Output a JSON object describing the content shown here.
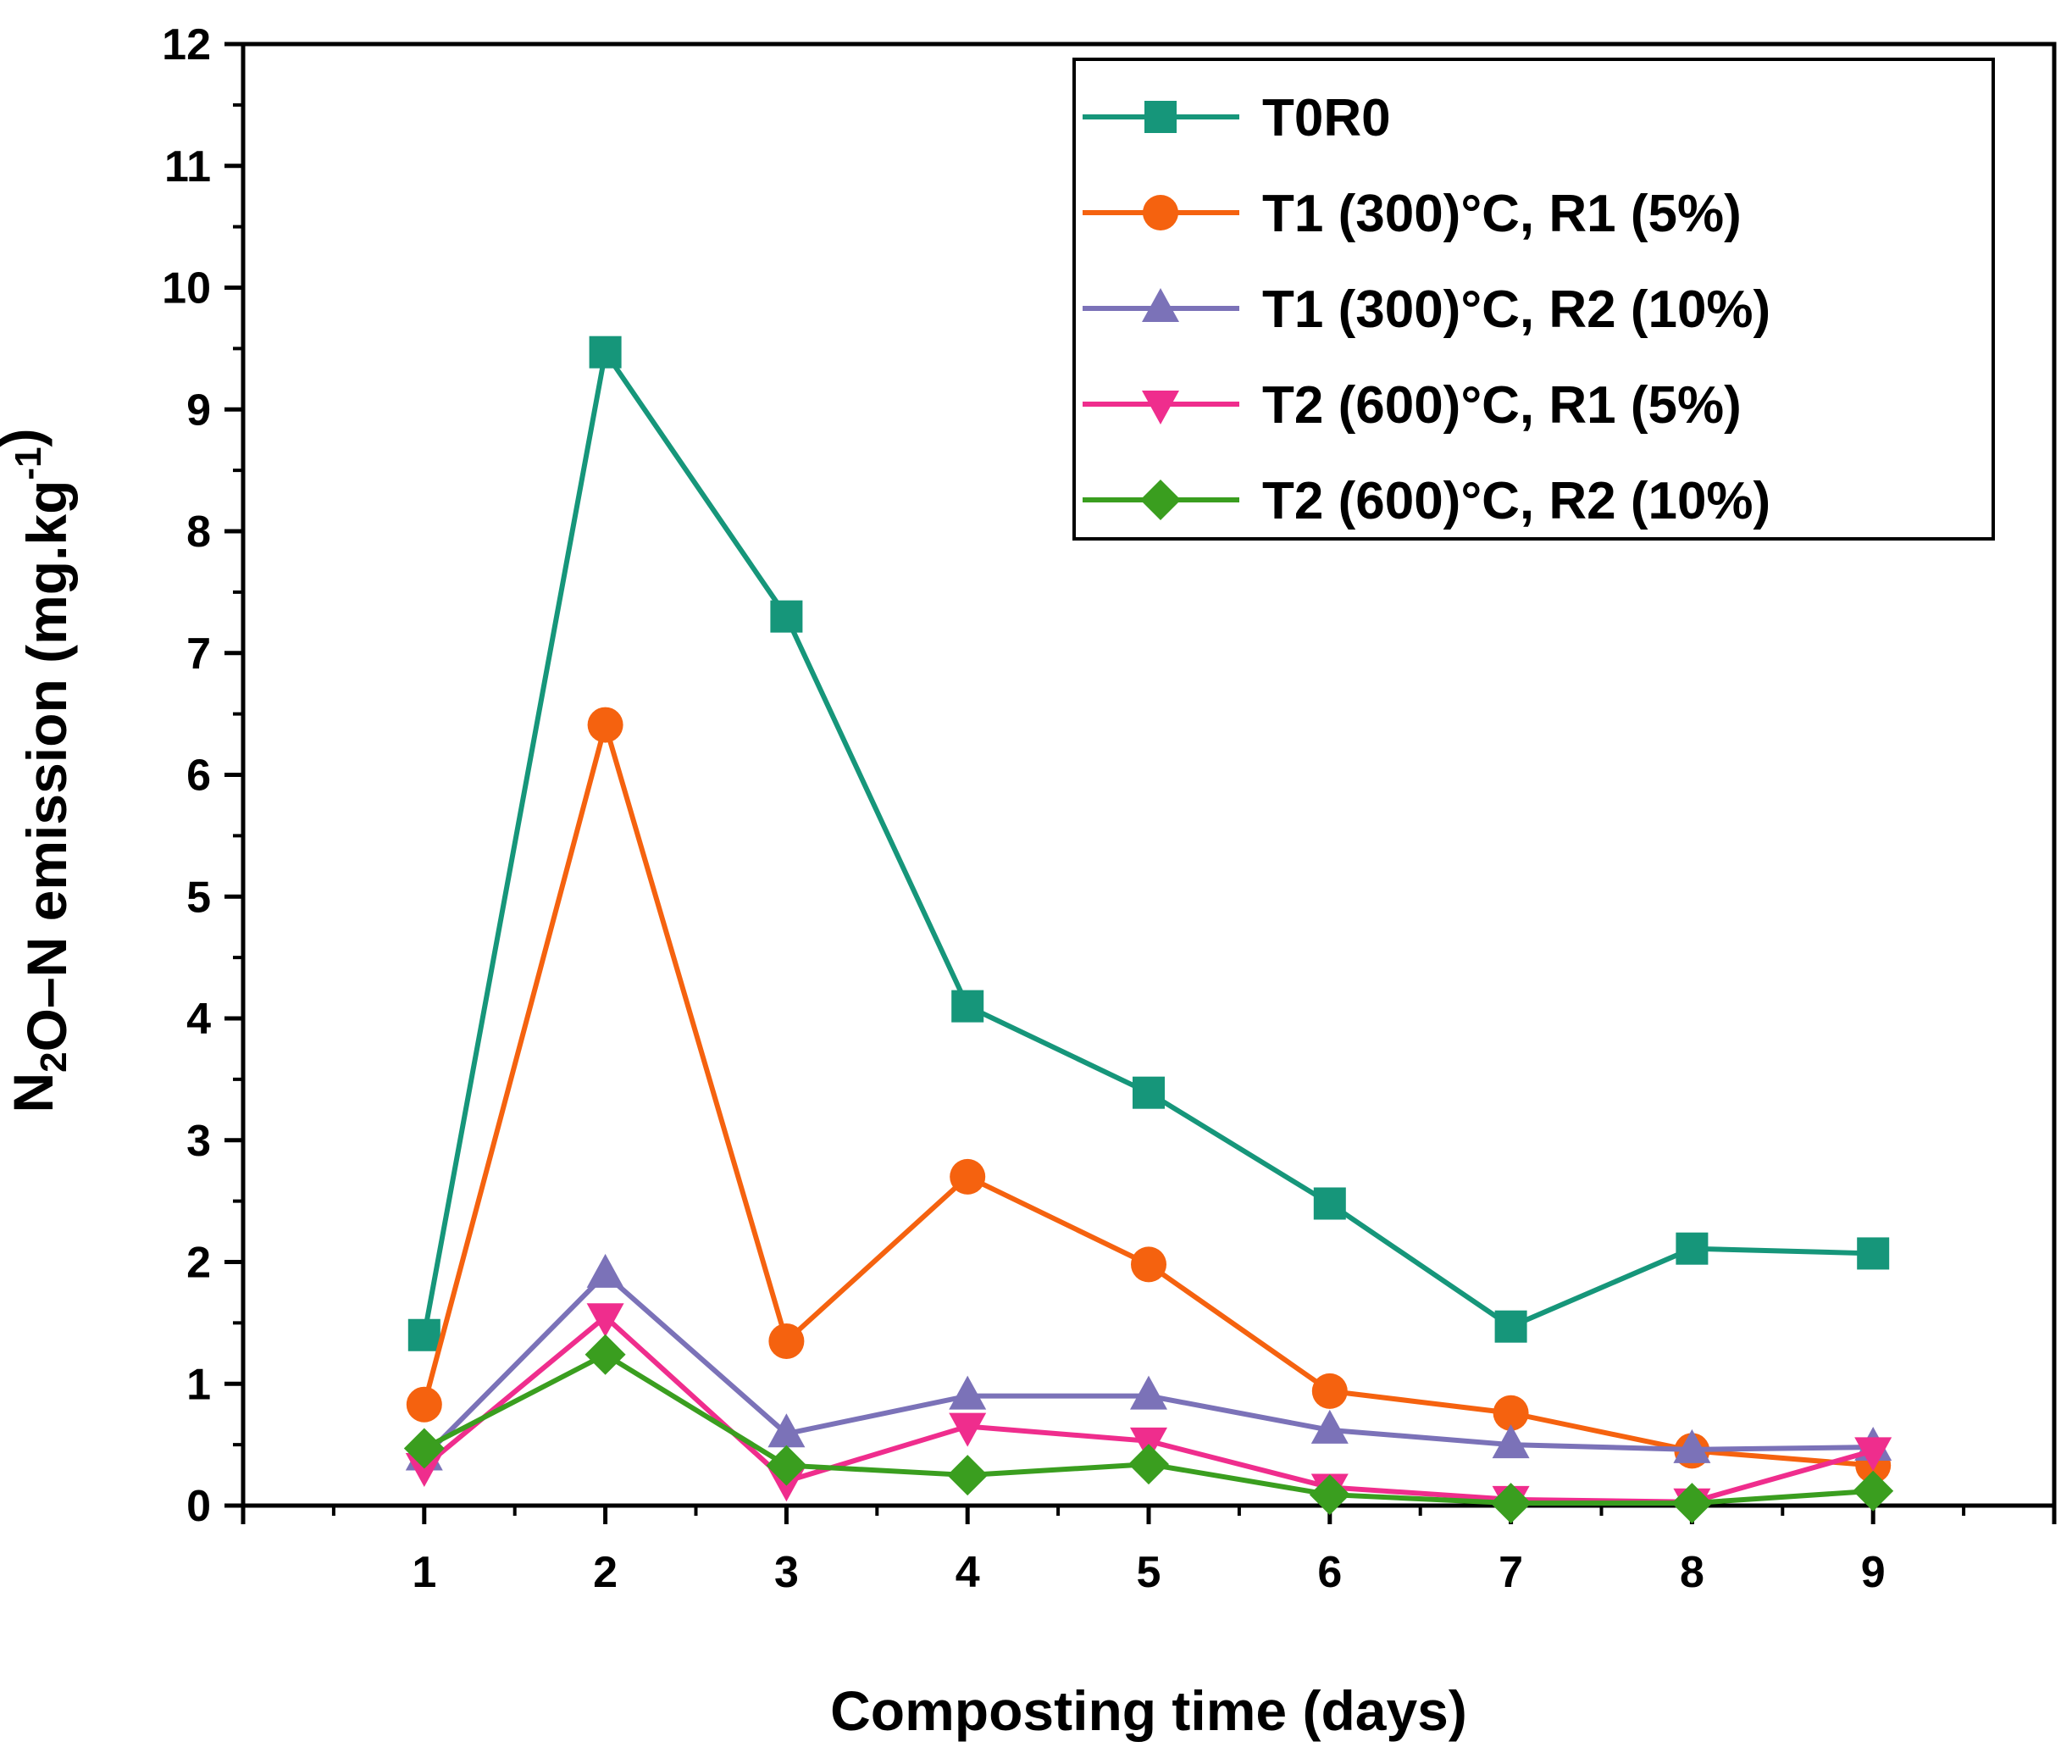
{
  "chart_data": {
    "type": "line",
    "xlabel": "Composting time (days)",
    "ylabel": {
      "parts": [
        {
          "text": "N",
          "sub": false,
          "sup": false
        },
        {
          "text": "2",
          "sub": true,
          "sup": false
        },
        {
          "text": "O–N emission (mg.kg",
          "sub": false,
          "sup": false
        },
        {
          "text": "-1",
          "sub": false,
          "sup": true
        },
        {
          "text": ")",
          "sub": false,
          "sup": false
        }
      ]
    },
    "xlim": [
      0,
      10
    ],
    "ylim": [
      0,
      12
    ],
    "x_ticks": [
      "1",
      "2",
      "3",
      "4",
      "5",
      "6",
      "7",
      "8",
      "9"
    ],
    "y_ticks": [
      "0",
      "1",
      "2",
      "3",
      "4",
      "5",
      "6",
      "7",
      "8",
      "9",
      "10",
      "11",
      "12"
    ],
    "x": [
      1,
      2,
      3,
      4,
      5,
      6,
      7,
      8,
      9
    ],
    "legend_position": "top-right",
    "grid": false,
    "series": [
      {
        "name": "T0R0",
        "color": "#16967a",
        "marker": "square",
        "values": [
          1.4,
          9.47,
          7.3,
          4.1,
          3.39,
          2.48,
          1.47,
          2.11,
          2.07
        ]
      },
      {
        "name": "T1 (300)°C, R1 (5%)",
        "color": "#f5620f",
        "marker": "circle",
        "values": [
          0.83,
          6.41,
          1.35,
          2.7,
          1.98,
          0.94,
          0.76,
          0.45,
          0.33
        ]
      },
      {
        "name": "T1 (300)°C, R2 (10%)",
        "color": "#7b72b8",
        "marker": "triangle-up",
        "values": [
          0.4,
          1.9,
          0.59,
          0.9,
          0.9,
          0.62,
          0.5,
          0.46,
          0.48
        ]
      },
      {
        "name": "T2 (600)°C, R1 (5%)",
        "color": "#ef2d8d",
        "marker": "triangle-down",
        "values": [
          0.32,
          1.55,
          0.2,
          0.65,
          0.53,
          0.15,
          0.05,
          0.03,
          0.45
        ]
      },
      {
        "name": "T2 (600)°C, R2 (10%)",
        "color": "#3a9e1f",
        "marker": "diamond",
        "values": [
          0.47,
          1.24,
          0.33,
          0.25,
          0.34,
          0.09,
          0.02,
          0.02,
          0.12
        ]
      }
    ]
  }
}
